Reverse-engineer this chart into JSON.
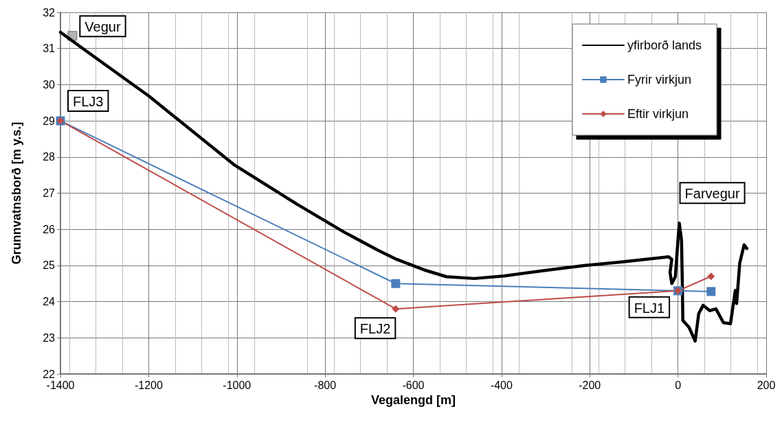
{
  "chart_data": {
    "type": "line",
    "xlabel": "Vegalengd [m]",
    "ylabel": "Grunnvatnsborð [m y.s.]",
    "xlim": [
      -1400,
      200
    ],
    "xticks": [
      -1400,
      -1200,
      -1000,
      -800,
      -600,
      -400,
      -200,
      0,
      200
    ],
    "ylim": [
      22,
      32
    ],
    "yticks": [
      22,
      23,
      24,
      25,
      26,
      27,
      28,
      29,
      30,
      31,
      32
    ],
    "grid": true,
    "legend": "top right",
    "series": [
      {
        "name": "yfirborð lands",
        "color": "#000000",
        "marker": "none",
        "x": [
          -1400,
          -1345,
          -1199,
          -1007,
          -863,
          -758,
          -680,
          -638,
          -576,
          -525,
          -462,
          -395,
          -291,
          -213,
          -135,
          -21,
          -14,
          -18,
          -14,
          -6,
          0,
          3,
          8,
          10,
          11,
          25,
          39,
          47,
          57,
          72,
          86,
          103,
          119,
          130,
          133,
          140,
          150,
          156
        ],
        "values": [
          31.45,
          30.96,
          29.68,
          27.79,
          26.69,
          25.93,
          25.42,
          25.17,
          24.88,
          24.69,
          24.64,
          24.71,
          24.88,
          25.0,
          25.09,
          25.24,
          25.17,
          24.81,
          24.5,
          24.69,
          25.7,
          26.17,
          25.7,
          24.43,
          23.48,
          23.29,
          22.91,
          23.67,
          23.9,
          23.75,
          23.8,
          23.42,
          23.39,
          24.31,
          23.95,
          25.07,
          25.57,
          25.47
        ]
      },
      {
        "name": "Fyrir virkjun",
        "color": "#4a7ebb",
        "marker": "square",
        "x": [
          -1400,
          -640,
          0,
          75
        ],
        "values": [
          29,
          24.5,
          24.3,
          24.28
        ]
      },
      {
        "name": "Eftir virkjun",
        "color": "#be4b48",
        "marker": "diamond",
        "x": [
          -1400,
          -640,
          0,
          75
        ],
        "values": [
          29,
          23.8,
          24.3,
          24.7
        ]
      },
      {
        "type": "scatter",
        "color": "#a0a0a0",
        "marker": "square",
        "x": [
          -1373
        ],
        "values": [
          31.35
        ]
      }
    ],
    "annotations": [
      {
        "text": "Vegur",
        "x": -1373,
        "y": 31.35
      },
      {
        "text": "FLJ3",
        "x": -1400,
        "y": 29
      },
      {
        "text": "FLJ2",
        "x": -640,
        "y": 23.8
      },
      {
        "text": "FLJ1",
        "x": 0,
        "y": 24.3
      },
      {
        "text": "Farvegur",
        "x": 3,
        "y": 26.17
      }
    ]
  }
}
